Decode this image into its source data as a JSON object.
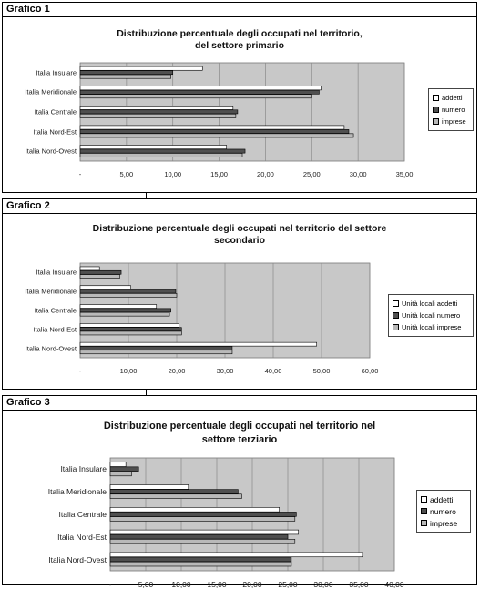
{
  "colors": {
    "addetti": "#ffffff",
    "numero": "#4f4f4f",
    "imprese": "#b9b9b9",
    "plot": "#c8c8c8"
  },
  "chart_data": [
    {
      "type": "bar",
      "header": "Grafico 1",
      "title": "Distribuzione percentuale degli occupati nel territorio,\ndel settore primario",
      "categories": [
        "Italia Insulare",
        "Italia Meridionale",
        "Italia Centrale",
        "Italia Nord-Est",
        "Italia Nord-Ovest"
      ],
      "series": [
        {
          "name": "addetti",
          "values": [
            13.2,
            26.0,
            16.5,
            28.5,
            15.8
          ]
        },
        {
          "name": "numero",
          "values": [
            10.0,
            25.8,
            17.0,
            29.0,
            17.8
          ]
        },
        {
          "name": "imprese",
          "values": [
            9.8,
            25.0,
            16.8,
            29.5,
            17.5
          ]
        }
      ],
      "xlim": [
        0,
        35
      ],
      "xticks": [
        "-",
        "5,00",
        "10,00",
        "15,00",
        "20,00",
        "25,00",
        "30,00",
        "35,00"
      ]
    },
    {
      "type": "bar",
      "header": "Grafico 2",
      "title": "Distribuzione percentuale degli occupati nel territorio del settore\nsecondario",
      "categories": [
        "Italia Insulare",
        "Italia Meridionale",
        "Italia Centrale",
        "Italia Nord-Est",
        "Italia Nord-Ovest"
      ],
      "series": [
        {
          "name": "Unità locali addetti",
          "values": [
            4.0,
            10.5,
            15.8,
            20.5,
            49.0
          ]
        },
        {
          "name": "Unità locali numero",
          "values": [
            8.5,
            19.8,
            18.8,
            21.0,
            31.5
          ]
        },
        {
          "name": "Unità locali imprese",
          "values": [
            8.2,
            20.0,
            18.5,
            21.0,
            31.5
          ]
        }
      ],
      "xlim": [
        0,
        60
      ],
      "xticks": [
        "-",
        "10,00",
        "20,00",
        "30,00",
        "40,00",
        "50,00",
        "60,00"
      ]
    },
    {
      "type": "bar",
      "header": "Grafico 3",
      "title": "Distribuzione percentuale degli occupati nel territorio nel\nsettore terziario",
      "categories": [
        "Italia Insulare",
        "Italia Meridionale",
        "Italia Centrale",
        "Italia Nord-Est",
        "Italia Nord-Ovest"
      ],
      "series": [
        {
          "name": "addetti",
          "values": [
            2.2,
            11.0,
            23.8,
            26.5,
            35.5
          ]
        },
        {
          "name": "numero",
          "values": [
            4.0,
            18.0,
            26.2,
            25.0,
            25.5
          ]
        },
        {
          "name": "imprese",
          "values": [
            3.0,
            18.5,
            26.0,
            26.0,
            25.5
          ]
        }
      ],
      "xlim": [
        0,
        40
      ],
      "xticks": [
        "-",
        "5,00",
        "10,00",
        "15,00",
        "20,00",
        "25,00",
        "30,00",
        "35,00",
        "40,00"
      ]
    }
  ]
}
